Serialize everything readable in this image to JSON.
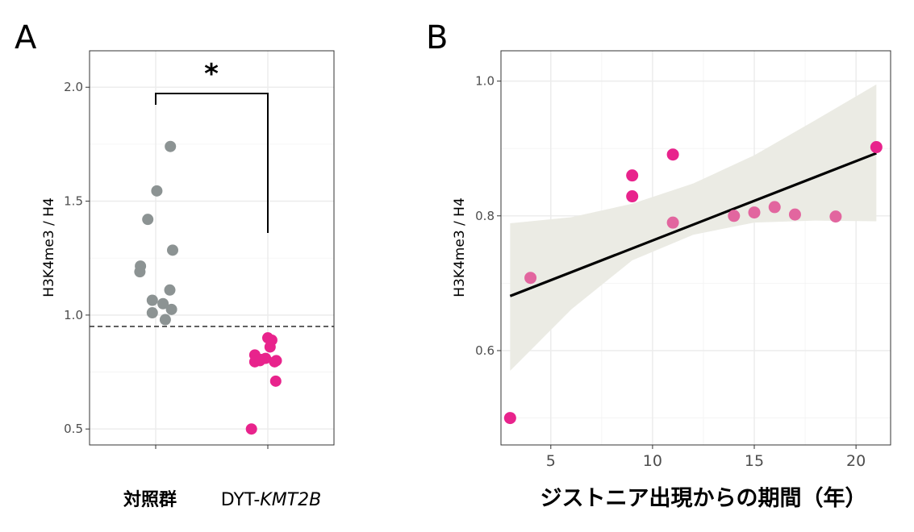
{
  "colors": {
    "control": "#8c9393",
    "patient": "#e8238c",
    "patient_light": "#e2669f",
    "ribbon": "#ebebe4",
    "line": "#000000"
  },
  "chart_data": [
    {
      "panel": "A",
      "type": "scatter",
      "categories": [
        "対照群",
        "DYT-KMT2B"
      ],
      "category_label_parts": [
        {
          "plain": "対照群",
          "italic": ""
        },
        {
          "plain": "DYT-",
          "italic": "KMT2B"
        }
      ],
      "ylabel": "H3K4me3 / H4",
      "ylim": [
        0.43,
        2.16
      ],
      "yticks": [
        0.5,
        1.0,
        1.5,
        2.0
      ],
      "ytick_labels": [
        "0.5",
        "1.0",
        "1.5",
        "2.0"
      ],
      "grid": true,
      "reference_line": {
        "y": 0.95,
        "style": "dashed"
      },
      "significance": {
        "label": "*",
        "between": [
          "対照群",
          "DYT-KMT2B"
        ]
      },
      "series": [
        {
          "group": "対照群",
          "color": "control",
          "points": [
            {
              "jitter": -0.27,
              "y": 1.215
            },
            {
              "jitter": -0.28,
              "y": 1.19
            },
            {
              "jitter": -0.14,
              "y": 1.42
            },
            {
              "jitter": 0.02,
              "y": 1.545
            },
            {
              "jitter": 0.26,
              "y": 1.74
            },
            {
              "jitter": 0.3,
              "y": 1.285
            },
            {
              "jitter": -0.06,
              "y": 1.065
            },
            {
              "jitter": -0.06,
              "y": 1.01
            },
            {
              "jitter": 0.13,
              "y": 1.05
            },
            {
              "jitter": 0.17,
              "y": 0.98
            },
            {
              "jitter": 0.25,
              "y": 1.11
            },
            {
              "jitter": 0.28,
              "y": 1.025
            }
          ]
        },
        {
          "group": "DYT-KMT2B",
          "color": "patient",
          "points": [
            {
              "jitter": -0.29,
              "y": 0.5
            },
            {
              "jitter": -0.23,
              "y": 0.825
            },
            {
              "jitter": -0.23,
              "y": 0.795
            },
            {
              "jitter": -0.14,
              "y": 0.8
            },
            {
              "jitter": -0.12,
              "y": 0.805
            },
            {
              "jitter": -0.04,
              "y": 0.81
            },
            {
              "jitter": 0.0,
              "y": 0.9
            },
            {
              "jitter": 0.04,
              "y": 0.86
            },
            {
              "jitter": 0.07,
              "y": 0.89
            },
            {
              "jitter": 0.12,
              "y": 0.795
            },
            {
              "jitter": 0.15,
              "y": 0.8
            },
            {
              "jitter": 0.14,
              "y": 0.71
            }
          ]
        }
      ]
    },
    {
      "panel": "B",
      "type": "scatter",
      "xlabel": "ジストニア出現からの期間（年）",
      "ylabel": "H3K4me3 / H4",
      "xlim": [
        2.55,
        21.7
      ],
      "ylim": [
        0.46,
        1.045
      ],
      "xticks": [
        5,
        10,
        15,
        20
      ],
      "xtick_labels": [
        "5",
        "10",
        "15",
        "20"
      ],
      "yticks": [
        0.6,
        0.8,
        1.0
      ],
      "ytick_labels": [
        "0.6",
        "0.8",
        "1.0"
      ],
      "grid": true,
      "points": [
        {
          "x": 3,
          "y": 0.5,
          "color": "patient"
        },
        {
          "x": 4,
          "y": 0.708,
          "color": "patient_light"
        },
        {
          "x": 9,
          "y": 0.86,
          "color": "patient"
        },
        {
          "x": 9,
          "y": 0.829,
          "color": "patient"
        },
        {
          "x": 11,
          "y": 0.891,
          "color": "patient"
        },
        {
          "x": 11,
          "y": 0.79,
          "color": "patient_light"
        },
        {
          "x": 14,
          "y": 0.8,
          "color": "patient_light"
        },
        {
          "x": 15,
          "y": 0.805,
          "color": "patient_light"
        },
        {
          "x": 16,
          "y": 0.813,
          "color": "patient_light"
        },
        {
          "x": 17,
          "y": 0.802,
          "color": "patient_light"
        },
        {
          "x": 19,
          "y": 0.799,
          "color": "patient_light"
        },
        {
          "x": 21,
          "y": 0.902,
          "color": "patient"
        }
      ],
      "regression": {
        "x": [
          3,
          21
        ],
        "y": [
          0.681,
          0.893
        ],
        "ci": [
          {
            "x": 3,
            "lo": 0.57,
            "hi": 0.789
          },
          {
            "x": 6,
            "lo": 0.661,
            "hi": 0.798
          },
          {
            "x": 9,
            "lo": 0.734,
            "hi": 0.818
          },
          {
            "x": 12,
            "lo": 0.772,
            "hi": 0.848
          },
          {
            "x": 15,
            "lo": 0.79,
            "hi": 0.89
          },
          {
            "x": 18,
            "lo": 0.793,
            "hi": 0.942
          },
          {
            "x": 21,
            "lo": 0.792,
            "hi": 0.995
          }
        ]
      }
    }
  ]
}
